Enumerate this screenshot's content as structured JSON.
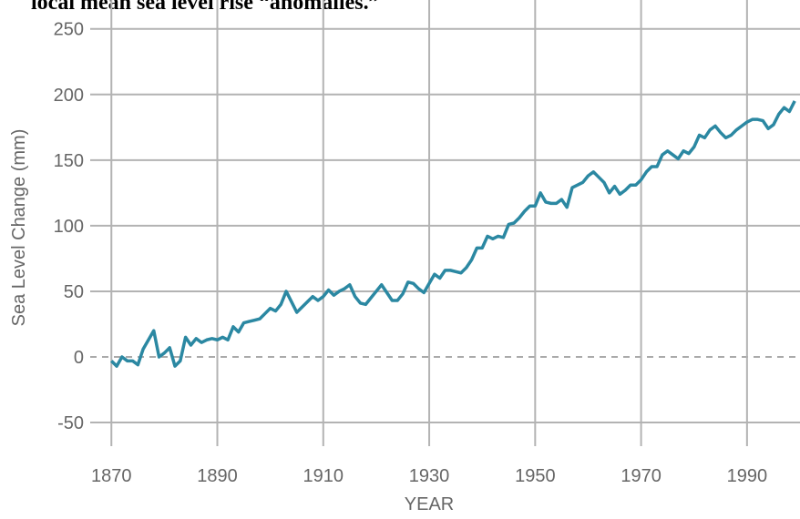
{
  "chart_data": {
    "type": "line",
    "title": "local mean sea level rise “anomalies.”",
    "x_label": "YEAR",
    "y_label": "Sea Level Change (mm)",
    "color": "#2b88a2",
    "grid": true,
    "zero_line": "dashed",
    "xlim": [
      1866,
      2000
    ],
    "xticks": [
      1870,
      1890,
      1910,
      1930,
      1950,
      1970,
      1990
    ],
    "ylim": [
      -68,
      272
    ],
    "yticks": [
      -50,
      0,
      50,
      100,
      150,
      200,
      250
    ],
    "x": [
      1870,
      1871,
      1872,
      1873,
      1874,
      1875,
      1876,
      1877,
      1878,
      1879,
      1880,
      1881,
      1882,
      1883,
      1884,
      1885,
      1886,
      1887,
      1888,
      1889,
      1890,
      1891,
      1892,
      1893,
      1894,
      1895,
      1896,
      1897,
      1898,
      1899,
      1900,
      1901,
      1902,
      1903,
      1904,
      1905,
      1906,
      1907,
      1908,
      1909,
      1910,
      1911,
      1912,
      1913,
      1914,
      1915,
      1916,
      1917,
      1918,
      1919,
      1920,
      1921,
      1922,
      1923,
      1924,
      1925,
      1926,
      1927,
      1928,
      1929,
      1930,
      1931,
      1932,
      1933,
      1934,
      1935,
      1936,
      1937,
      1938,
      1939,
      1940,
      1941,
      1942,
      1943,
      1944,
      1945,
      1946,
      1947,
      1948,
      1949,
      1950,
      1951,
      1952,
      1953,
      1954,
      1955,
      1956,
      1957,
      1958,
      1959,
      1960,
      1961,
      1962,
      1963,
      1964,
      1965,
      1966,
      1967,
      1968,
      1969,
      1970,
      1971,
      1972,
      1973,
      1974,
      1975,
      1976,
      1977,
      1978,
      1979,
      1980,
      1981,
      1982,
      1983,
      1984,
      1985,
      1986,
      1987,
      1988,
      1989,
      1990,
      1991,
      1992,
      1993,
      1994,
      1995,
      1996,
      1997,
      1998,
      1999
    ],
    "values": [
      -3,
      -7,
      0,
      -3,
      -3,
      -6,
      6,
      13,
      20,
      0,
      3,
      7,
      -7,
      -3,
      15,
      9,
      14,
      11,
      13,
      14,
      13,
      15,
      13,
      23,
      19,
      26,
      27,
      28,
      29,
      33,
      37,
      35,
      40,
      50,
      42,
      34,
      38,
      42,
      46,
      43,
      46,
      51,
      47,
      50,
      52,
      55,
      46,
      41,
      40,
      45,
      50,
      55,
      49,
      43,
      43,
      48,
      57,
      56,
      52,
      49,
      56,
      63,
      60,
      66,
      66,
      65,
      64,
      68,
      74,
      83,
      83,
      92,
      90,
      92,
      91,
      101,
      102,
      106,
      111,
      115,
      115,
      125,
      118,
      117,
      117,
      120,
      114,
      129,
      131,
      133,
      138,
      141,
      137,
      133,
      125,
      130,
      124,
      127,
      131,
      131,
      135,
      141,
      145,
      145,
      154,
      157,
      154,
      151,
      157,
      155,
      160,
      169,
      167,
      173,
      176,
      171,
      167,
      169,
      173,
      176,
      179,
      181,
      181,
      180,
      174,
      177,
      185,
      190,
      187,
      195
    ]
  }
}
